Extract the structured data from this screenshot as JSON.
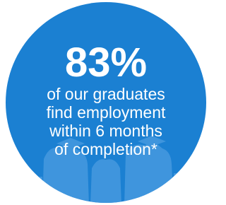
{
  "stat": {
    "value": "83%",
    "lines": [
      "of our graduates",
      "find employment",
      "within 6 months",
      "of completion*"
    ]
  }
}
